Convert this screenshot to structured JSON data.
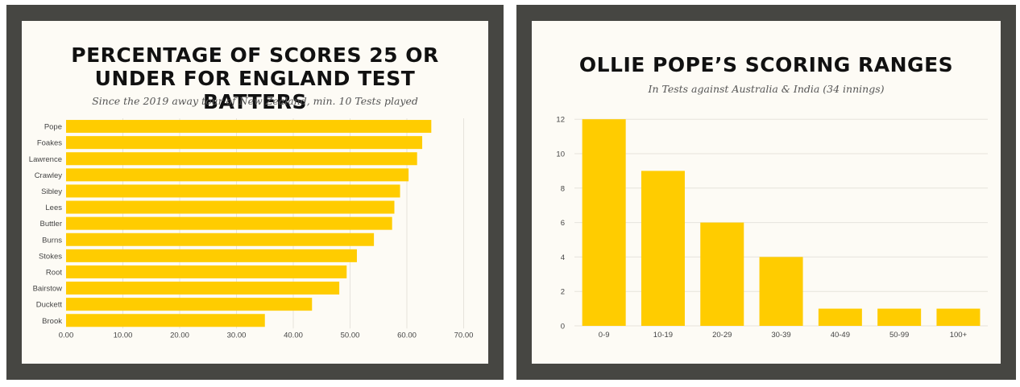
{
  "left_panel": {
    "title": "PERCENTAGE OF SCORES 25 OR UNDER FOR ENGLAND TEST BATTERS",
    "subtitle": "Since the 2019 away tour of New Zealand, min. 10 Tests played"
  },
  "right_panel": {
    "title": "OLLIE POPE’S SCORING RANGES",
    "subtitle": "In Tests against Australia & India (34 innings)"
  },
  "colors": {
    "bar": "#ffcc00",
    "frame": "#464642",
    "card": "#fdfbf5",
    "grid": "#e6e3dc"
  },
  "chart_data": [
    {
      "type": "bar",
      "orientation": "horizontal",
      "title": "PERCENTAGE OF SCORES 25 OR UNDER FOR ENGLAND TEST BATTERS",
      "subtitle": "Since the 2019 away tour of New Zealand, min. 10 Tests played",
      "categories": [
        "Pope",
        "Foakes",
        "Lawrence",
        "Crawley",
        "Sibley",
        "Lees",
        "Buttler",
        "Burns",
        "Stokes",
        "Root",
        "Bairstow",
        "Duckett",
        "Brook"
      ],
      "values": [
        64.3,
        62.7,
        61.8,
        60.3,
        58.8,
        57.8,
        57.4,
        54.2,
        51.2,
        49.4,
        48.1,
        43.3,
        35.0
      ],
      "xlim": [
        0,
        70
      ],
      "xticks": [
        "0.00",
        "10.00",
        "20.00",
        "30.00",
        "40.00",
        "50.00",
        "60.00",
        "70.00"
      ],
      "grid": "vertical"
    },
    {
      "type": "bar",
      "orientation": "vertical",
      "title": "OLLIE POPE’S SCORING RANGES",
      "subtitle": "In Tests against Australia & India (34 innings)",
      "categories": [
        "0-9",
        "10-19",
        "20-29",
        "30-39",
        "40-49",
        "50-99",
        "100+"
      ],
      "values": [
        12,
        9,
        6,
        4,
        1,
        1,
        1
      ],
      "ylim": [
        0,
        12
      ],
      "yticks": [
        "0",
        "2",
        "4",
        "6",
        "8",
        "10",
        "12"
      ],
      "grid": "horizontal"
    }
  ]
}
